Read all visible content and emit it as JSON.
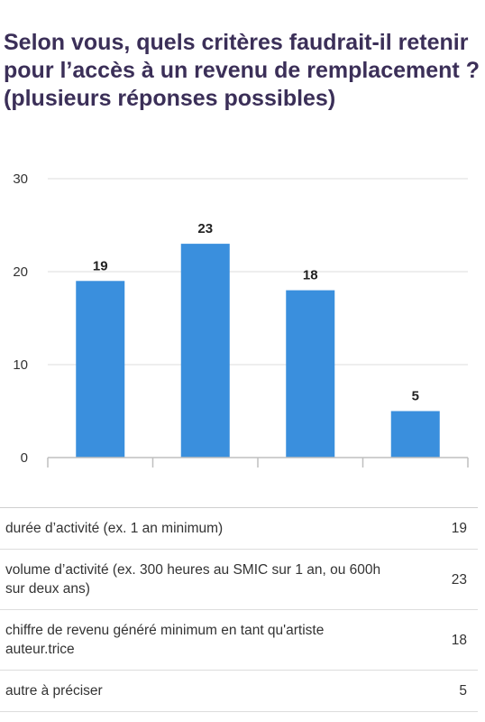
{
  "title": "Selon vous, quels critères faudrait-il retenir pour l’accès à un revenu de remplacement ? (plusieurs réponses possibles)",
  "colors": {
    "bar": "#3a8fdd",
    "grid": "#dcdcdc",
    "axis": "#bfbfbf"
  },
  "chart_data": {
    "type": "bar",
    "title": "Selon vous, quels critères faudrait-il retenir pour l’accès à un revenu de remplacement ? (plusieurs réponses possibles)",
    "categories": [
      "durée d’activité (ex. 1 an minimum)",
      "volume d’activité (ex. 300 heures au SMIC sur 1 an, ou 600h sur deux ans)",
      "chiffre de revenu généré minimum en tant qu'artiste auteur.trice",
      "autre à préciser"
    ],
    "values": [
      19,
      23,
      18,
      5
    ],
    "ylim": [
      0,
      30
    ],
    "yticks": [
      "0",
      "10",
      "20",
      "30"
    ],
    "grid": true,
    "data_labels": [
      "19",
      "23",
      "18",
      "5"
    ]
  },
  "table": {
    "rows": [
      {
        "label": "durée d’activité (ex. 1 an minimum)",
        "value": "19"
      },
      {
        "label": "volume d’activité (ex. 300 heures au SMIC sur 1 an, ou 600h sur deux ans)",
        "value": "23"
      },
      {
        "label": "chiffre de revenu généré minimum en tant qu'artiste auteur.trice",
        "value": "18"
      },
      {
        "label": "autre à préciser",
        "value": "5"
      }
    ]
  }
}
